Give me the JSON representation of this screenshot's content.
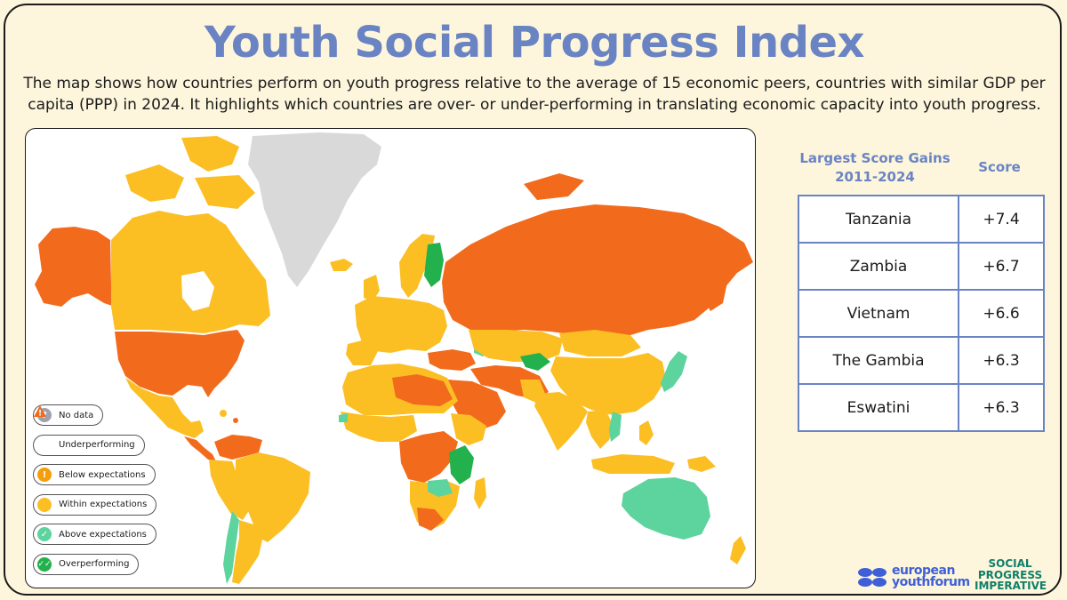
{
  "title": "Youth Social Progress Index",
  "subtitle": "The map shows how countries perform on youth progress relative to the average of 15 economic peers, countries with similar GDP per capita (PPP) in 2024. It highlights which countries are over- or under-performing in translating economic capacity into youth progress.",
  "colors": {
    "accent": "#6a84c3",
    "underperforming": "#f26b1d",
    "below_expectations": "#f59e0b",
    "within_expectations": "#fbbf24",
    "above_expectations": "#5dd39e",
    "overperforming": "#22b14c",
    "no_data": "#d9d9d9"
  },
  "legend": {
    "items": [
      {
        "label": "No data",
        "icon": "question-icon"
      },
      {
        "label": "Underperforming",
        "icon": "warning-icon"
      },
      {
        "label": "Below expectations",
        "icon": "exclamation-icon"
      },
      {
        "label": "Within expectations",
        "icon": "dot-icon"
      },
      {
        "label": "Above expectations",
        "icon": "check-icon"
      },
      {
        "label": "Overperforming",
        "icon": "double-check-icon"
      }
    ]
  },
  "table": {
    "header_country": "Largest Score Gains 2011-2024",
    "header_score": "Score",
    "rows": [
      {
        "country": "Tanzania",
        "score": "+7.4"
      },
      {
        "country": "Zambia",
        "score": "+6.7"
      },
      {
        "country": "Vietnam",
        "score": "+6.6"
      },
      {
        "country": "The Gambia",
        "score": "+6.3"
      },
      {
        "country": "Eswatini",
        "score": "+6.3"
      }
    ]
  },
  "logos": {
    "eyf_line1": "european",
    "eyf_line2": "youthforum",
    "spi_line1": "SOCIAL",
    "spi_line2": "PROGRESS",
    "spi_line3": "IMPERATIVE"
  }
}
